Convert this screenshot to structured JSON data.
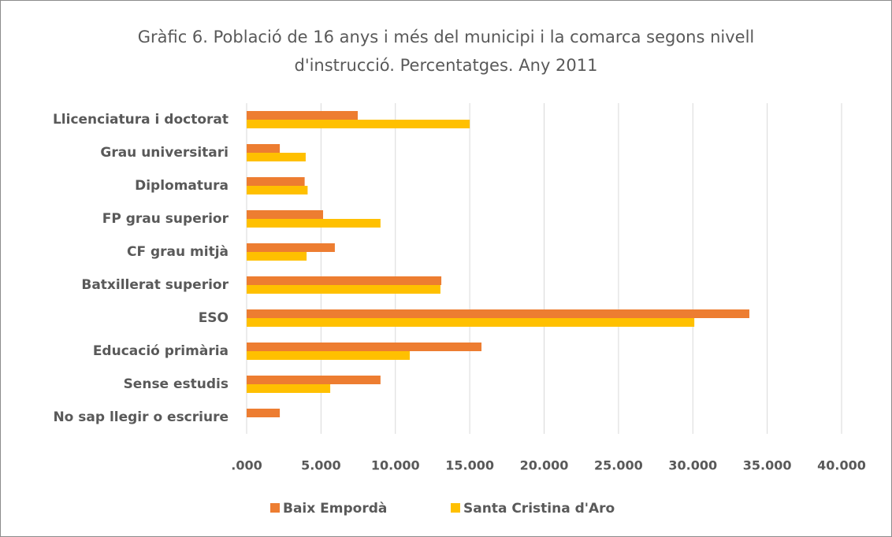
{
  "chart_data": {
    "type": "hbar",
    "title": [
      "Gràfic 6. Població de 16 anys i més del municipi i la comarca segons nivell",
      "d'instrucció. Percentatges. Any 2011"
    ],
    "categories": [
      "Llicenciatura i doctorat",
      "Grau universitari",
      "Diplomatura",
      "FP grau superior",
      "CF grau mitjà",
      "Batxillerat superior",
      "ESO",
      "Educació primària",
      "Sense estudis",
      "No sap llegir o escriure"
    ],
    "series": [
      {
        "name": "Baix Empordà",
        "color": "#ED7D31",
        "values": [
          7.47,
          2.23,
          3.9,
          5.14,
          5.93,
          13.09,
          33.8,
          15.79,
          9.0,
          2.23
        ]
      },
      {
        "name": "Santa Cristina d'Aro",
        "color": "#FFC000",
        "values": [
          15.0,
          3.97,
          4.1,
          9.0,
          4.03,
          13.03,
          30.1,
          10.97,
          5.62,
          0
        ]
      }
    ],
    "xlim": [
      0,
      40
    ],
    "xticks": [
      {
        "value": 0,
        "label": ".000"
      },
      {
        "value": 5,
        "label": "5.000"
      },
      {
        "value": 10,
        "label": "10.000"
      },
      {
        "value": 15,
        "label": "15.000"
      },
      {
        "value": 20,
        "label": "20.000"
      },
      {
        "value": 25,
        "label": "25.000"
      },
      {
        "value": 30,
        "label": "30.000"
      },
      {
        "value": 35,
        "label": "35.000"
      },
      {
        "value": 40,
        "label": "40.000"
      }
    ],
    "grid": true,
    "legend": "bottom"
  }
}
